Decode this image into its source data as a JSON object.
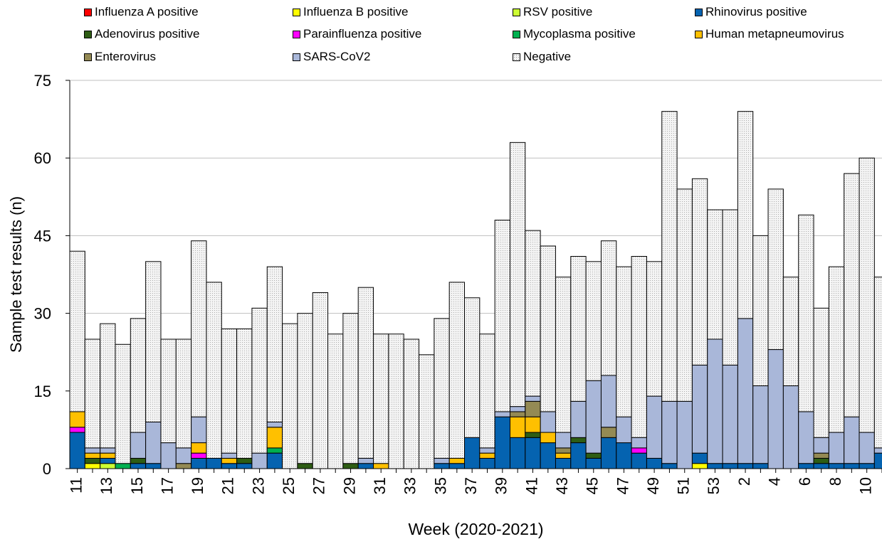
{
  "chart_data": {
    "type": "bar",
    "stacked": true,
    "xlabel": "Week (2020-2021)",
    "ylabel": "Sample test results (n)",
    "ylim": [
      0,
      75
    ],
    "yticks": [
      0,
      15,
      30,
      45,
      60,
      75
    ],
    "grid": "horizontal",
    "legend_position": "top",
    "categories": [
      "11",
      "12",
      "13",
      "14",
      "15",
      "16",
      "17",
      "18",
      "19",
      "20",
      "21",
      "22",
      "23",
      "24",
      "25",
      "26",
      "27",
      "28",
      "29",
      "30",
      "31",
      "32",
      "33",
      "34",
      "35",
      "36",
      "37",
      "38",
      "39",
      "40",
      "41",
      "42",
      "43",
      "44",
      "45",
      "46",
      "47",
      "48",
      "49",
      "50",
      "51",
      "52",
      "53",
      "1",
      "2",
      "3",
      "4",
      "5",
      "6",
      "7",
      "8",
      "9",
      "10",
      "11"
    ],
    "tick_labels": [
      "11",
      "13",
      "15",
      "17",
      "19",
      "21",
      "23",
      "25",
      "27",
      "29",
      "31",
      "33",
      "35",
      "37",
      "39",
      "41",
      "43",
      "45",
      "47",
      "49",
      "51",
      "53",
      "2",
      "4",
      "6",
      "8",
      "10"
    ],
    "series": [
      {
        "name": "Influenza A positive",
        "color": "#ff0000",
        "values": [
          0,
          0,
          0,
          0,
          0,
          0,
          0,
          0,
          0,
          0,
          0,
          0,
          0,
          0,
          0,
          0,
          0,
          0,
          0,
          0,
          0,
          0,
          0,
          0,
          0,
          0,
          0,
          0,
          0,
          0,
          0,
          0,
          0,
          0,
          0,
          0,
          0,
          0,
          0,
          0,
          0,
          0,
          0,
          0,
          0,
          0,
          0,
          0,
          0,
          0,
          0,
          0,
          0,
          0
        ]
      },
      {
        "name": "Influenza B positive",
        "color": "#ffff00",
        "values": [
          0,
          1,
          0,
          0,
          0,
          0,
          0,
          0,
          0,
          0,
          0,
          0,
          0,
          0,
          0,
          0,
          0,
          0,
          0,
          0,
          0,
          0,
          0,
          0,
          0,
          0,
          0,
          0,
          0,
          0,
          0,
          0,
          0,
          0,
          0,
          0,
          0,
          0,
          0,
          0,
          0,
          1,
          0,
          0,
          0,
          0,
          0,
          0,
          0,
          0,
          0,
          0,
          0,
          0
        ]
      },
      {
        "name": "RSV positive",
        "color": "#ccff33",
        "values": [
          0,
          0,
          1,
          0,
          0,
          0,
          0,
          0,
          0,
          0,
          0,
          0,
          0,
          0,
          0,
          0,
          0,
          0,
          0,
          0,
          0,
          0,
          0,
          0,
          0,
          0,
          0,
          0,
          0,
          0,
          0,
          0,
          0,
          0,
          0,
          0,
          0,
          0,
          0,
          0,
          0,
          0,
          0,
          0,
          0,
          0,
          0,
          0,
          0,
          0,
          0,
          0,
          0,
          0
        ]
      },
      {
        "name": "Rhinovirus positive",
        "color": "#0563b0",
        "values": [
          7,
          0,
          1,
          0,
          1,
          1,
          0,
          0,
          2,
          2,
          1,
          1,
          0,
          3,
          0,
          0,
          0,
          0,
          0,
          1,
          0,
          0,
          0,
          0,
          1,
          1,
          6,
          2,
          10,
          6,
          6,
          5,
          2,
          5,
          2,
          6,
          5,
          3,
          2,
          1,
          0,
          2,
          1,
          1,
          1,
          1,
          0,
          0,
          1,
          1,
          1,
          1,
          1,
          3
        ]
      },
      {
        "name": "Adenovirus positive",
        "color": "#2e5d14",
        "values": [
          0,
          1,
          0,
          0,
          1,
          0,
          0,
          0,
          0,
          0,
          0,
          1,
          0,
          0,
          0,
          1,
          0,
          0,
          1,
          0,
          0,
          0,
          0,
          0,
          0,
          0,
          0,
          0,
          0,
          0,
          1,
          0,
          0,
          1,
          1,
          0,
          0,
          0,
          0,
          0,
          0,
          0,
          0,
          0,
          0,
          0,
          0,
          0,
          0,
          1,
          0,
          0,
          0,
          0
        ]
      },
      {
        "name": "Parainfluenza positive",
        "color": "#ff00ff",
        "values": [
          1,
          0,
          0,
          0,
          0,
          0,
          0,
          0,
          1,
          0,
          0,
          0,
          0,
          0,
          0,
          0,
          0,
          0,
          0,
          0,
          0,
          0,
          0,
          0,
          0,
          0,
          0,
          0,
          0,
          0,
          0,
          0,
          0,
          0,
          0,
          0,
          0,
          1,
          0,
          0,
          0,
          0,
          0,
          0,
          0,
          0,
          0,
          0,
          0,
          0,
          0,
          0,
          0,
          0
        ]
      },
      {
        "name": "Mycoplasma positive",
        "color": "#00b050",
        "values": [
          0,
          0,
          0,
          1,
          0,
          0,
          0,
          0,
          0,
          0,
          0,
          0,
          0,
          1,
          0,
          0,
          0,
          0,
          0,
          0,
          0,
          0,
          0,
          0,
          0,
          0,
          0,
          0,
          0,
          0,
          0,
          0,
          0,
          0,
          0,
          0,
          0,
          0,
          0,
          0,
          0,
          0,
          0,
          0,
          0,
          0,
          0,
          0,
          0,
          0,
          0,
          0,
          0,
          0
        ]
      },
      {
        "name": "Human metapneumovirus",
        "color": "#ffc000",
        "values": [
          3,
          1,
          1,
          0,
          0,
          0,
          0,
          0,
          2,
          0,
          1,
          0,
          0,
          4,
          0,
          0,
          0,
          0,
          0,
          0,
          1,
          0,
          0,
          0,
          0,
          1,
          0,
          1,
          0,
          4,
          3,
          2,
          1,
          0,
          0,
          0,
          0,
          0,
          0,
          0,
          0,
          0,
          0,
          0,
          0,
          0,
          0,
          0,
          0,
          0,
          0,
          0,
          0,
          0
        ]
      },
      {
        "name": "Enterovirus",
        "color": "#948a54",
        "values": [
          0,
          0,
          0,
          0,
          0,
          0,
          0,
          1,
          0,
          0,
          0,
          0,
          0,
          0,
          0,
          0,
          0,
          0,
          0,
          0,
          0,
          0,
          0,
          0,
          0,
          0,
          0,
          0,
          0,
          1,
          3,
          0,
          1,
          0,
          0,
          2,
          0,
          0,
          0,
          0,
          0,
          0,
          0,
          0,
          0,
          0,
          0,
          0,
          0,
          1,
          0,
          0,
          0,
          0
        ]
      },
      {
        "name": "SARS-CoV2",
        "color": "#a9b7d9",
        "values": [
          0,
          1,
          1,
          0,
          5,
          8,
          5,
          3,
          5,
          0,
          1,
          0,
          3,
          1,
          0,
          0,
          0,
          0,
          0,
          1,
          0,
          0,
          0,
          0,
          1,
          0,
          0,
          1,
          1,
          1,
          1,
          4,
          3,
          7,
          14,
          10,
          5,
          2,
          12,
          12,
          13,
          17,
          24,
          19,
          28,
          15,
          23,
          16,
          10,
          3,
          6,
          9,
          6,
          1
        ]
      },
      {
        "name": "Negative",
        "color": "#f4f4f4",
        "values": [
          31,
          21,
          24,
          23,
          22,
          31,
          20,
          21,
          34,
          34,
          24,
          25,
          28,
          30,
          28,
          29,
          34,
          26,
          29,
          33,
          25,
          26,
          25,
          22,
          27,
          34,
          27,
          22,
          37,
          51,
          32,
          32,
          30,
          28,
          23,
          26,
          29,
          35,
          26,
          56,
          41,
          36,
          25,
          30,
          40,
          29,
          31,
          21,
          38,
          25,
          32,
          47,
          53,
          33
        ]
      }
    ]
  }
}
